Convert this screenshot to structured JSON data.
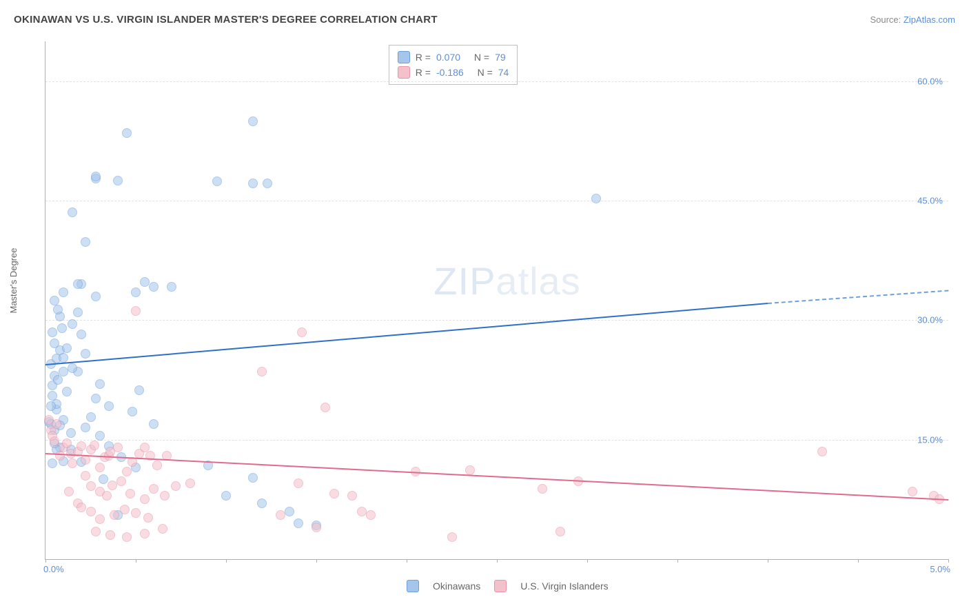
{
  "title": "OKINAWAN VS U.S. VIRGIN ISLANDER MASTER'S DEGREE CORRELATION CHART",
  "source_label": "Source: ",
  "source_name": "ZipAtlas.com",
  "ylabel": "Master's Degree",
  "watermark_a": "ZIP",
  "watermark_b": "atlas",
  "chart": {
    "type": "scatter",
    "xlim": [
      0,
      5
    ],
    "ylim": [
      0,
      65
    ],
    "xticks": [
      0,
      0.5,
      1,
      1.5,
      2,
      2.5,
      3,
      3.5,
      4,
      4.5,
      5
    ],
    "xtick_labels": {
      "0": "0.0%",
      "5": "5.0%"
    },
    "yticks": [
      15,
      30,
      45,
      60
    ],
    "ytick_labels": [
      "15.0%",
      "30.0%",
      "45.0%",
      "60.0%"
    ],
    "grid_color": "#e2e2e2",
    "background": "#ffffff",
    "series": {
      "blue": {
        "name": "Okinawans",
        "color_fill": "#a6c5ea",
        "color_stroke": "#6b9fdd",
        "r_label": "R =",
        "r": "0.070",
        "n_label": "N =",
        "n": "79",
        "trend": {
          "x1": 0,
          "y1": 24.5,
          "x2": 4.0,
          "y2": 32.2,
          "dashed_to": 5,
          "y3": 33.8,
          "color": "#2e6fc9"
        },
        "points": [
          [
            0.03,
            24.5
          ],
          [
            0.05,
            23
          ],
          [
            0.04,
            21.8
          ],
          [
            0.07,
            22.5
          ],
          [
            0.1,
            23.5
          ],
          [
            0.06,
            25.2
          ],
          [
            0.08,
            26.2
          ],
          [
            0.05,
            27.1
          ],
          [
            0.12,
            26.5
          ],
          [
            0.15,
            29.5
          ],
          [
            0.2,
            34.5
          ],
          [
            0.18,
            31.0
          ],
          [
            0.1,
            33.5
          ],
          [
            0.05,
            32.5
          ],
          [
            0.28,
            47.8
          ],
          [
            0.22,
            39.8
          ],
          [
            0.45,
            53.5
          ],
          [
            0.55,
            34.8
          ],
          [
            0.7,
            34.2
          ],
          [
            0.52,
            21.2
          ],
          [
            0.3,
            22.0
          ],
          [
            0.28,
            20.2
          ],
          [
            0.25,
            17.8
          ],
          [
            0.35,
            19.2
          ],
          [
            0.48,
            18.5
          ],
          [
            0.4,
            47.5
          ],
          [
            0.6,
            17.0
          ],
          [
            0.95,
            47.4
          ],
          [
            1.15,
            47.2
          ],
          [
            1.23,
            47.2
          ],
          [
            0.15,
            43.5
          ],
          [
            3.05,
            45.3
          ],
          [
            1.15,
            55.0
          ],
          [
            0.28,
            48.0
          ],
          [
            0.09,
            29.0
          ],
          [
            0.04,
            20.5
          ],
          [
            0.06,
            18.8
          ],
          [
            0.1,
            17.5
          ],
          [
            0.14,
            15.8
          ],
          [
            0.22,
            16.5
          ],
          [
            0.3,
            15.5
          ],
          [
            0.35,
            14.2
          ],
          [
            0.42,
            12.8
          ],
          [
            0.32,
            10.0
          ],
          [
            0.5,
            11.5
          ],
          [
            0.08,
            14.0
          ],
          [
            0.06,
            13.8
          ],
          [
            0.04,
            12.0
          ],
          [
            0.02,
            17.2
          ],
          [
            0.06,
            19.5
          ],
          [
            0.12,
            21.0
          ],
          [
            0.18,
            23.5
          ],
          [
            0.22,
            25.8
          ],
          [
            0.08,
            30.5
          ],
          [
            0.03,
            19.2
          ],
          [
            0.05,
            16.2
          ],
          [
            0.14,
            13.8
          ],
          [
            0.2,
            12.2
          ],
          [
            0.9,
            11.8
          ],
          [
            1.0,
            8.0
          ],
          [
            1.15,
            10.2
          ],
          [
            1.2,
            7.0
          ],
          [
            1.35,
            6.0
          ],
          [
            1.4,
            4.5
          ],
          [
            1.5,
            4.2
          ],
          [
            0.4,
            5.5
          ],
          [
            0.6,
            34.2
          ],
          [
            0.5,
            33.5
          ],
          [
            0.28,
            33.0
          ],
          [
            0.18,
            34.5
          ],
          [
            0.1,
            25.3
          ],
          [
            0.15,
            24.0
          ],
          [
            0.2,
            28.2
          ],
          [
            0.07,
            31.3
          ],
          [
            0.04,
            28.5
          ],
          [
            0.05,
            14.5
          ],
          [
            0.1,
            12.3
          ],
          [
            0.08,
            16.8
          ],
          [
            0.03,
            17.0
          ]
        ]
      },
      "pink": {
        "name": "U.S. Virgin Islanders",
        "color_fill": "#f4c0cb",
        "color_stroke": "#e993a8",
        "r_label": "R =",
        "r": "-0.186",
        "n_label": "N =",
        "n": "74",
        "trend": {
          "x1": 0,
          "y1": 13.3,
          "x2": 5.0,
          "y2": 7.5,
          "color": "#e16a8d"
        },
        "points": [
          [
            0.02,
            17.5
          ],
          [
            0.03,
            16.2
          ],
          [
            0.04,
            15.5
          ],
          [
            0.06,
            17.0
          ],
          [
            0.05,
            14.8
          ],
          [
            0.1,
            14.0
          ],
          [
            0.08,
            13.0
          ],
          [
            0.12,
            14.5
          ],
          [
            0.14,
            13.2
          ],
          [
            0.15,
            12.0
          ],
          [
            0.18,
            13.5
          ],
          [
            0.2,
            14.2
          ],
          [
            0.22,
            12.5
          ],
          [
            0.25,
            13.8
          ],
          [
            0.27,
            14.3
          ],
          [
            0.3,
            11.5
          ],
          [
            0.33,
            12.8
          ],
          [
            0.35,
            13.0
          ],
          [
            0.36,
            13.5
          ],
          [
            0.4,
            14.0
          ],
          [
            0.45,
            11.0
          ],
          [
            0.48,
            12.2
          ],
          [
            0.52,
            13.2
          ],
          [
            0.55,
            14.0
          ],
          [
            0.58,
            13.0
          ],
          [
            0.62,
            11.8
          ],
          [
            0.67,
            13.0
          ],
          [
            0.22,
            10.5
          ],
          [
            0.25,
            9.2
          ],
          [
            0.3,
            8.5
          ],
          [
            0.34,
            8.0
          ],
          [
            0.37,
            9.3
          ],
          [
            0.42,
            9.8
          ],
          [
            0.47,
            8.2
          ],
          [
            0.55,
            7.5
          ],
          [
            0.6,
            8.8
          ],
          [
            0.66,
            8.0
          ],
          [
            0.72,
            9.2
          ],
          [
            0.18,
            7.0
          ],
          [
            0.13,
            8.5
          ],
          [
            0.2,
            6.5
          ],
          [
            0.25,
            6.0
          ],
          [
            0.3,
            5.0
          ],
          [
            0.38,
            5.5
          ],
          [
            0.44,
            6.2
          ],
          [
            0.5,
            5.8
          ],
          [
            0.57,
            5.2
          ],
          [
            0.28,
            3.5
          ],
          [
            0.36,
            3.0
          ],
          [
            0.45,
            2.8
          ],
          [
            0.55,
            3.2
          ],
          [
            0.65,
            3.8
          ],
          [
            0.8,
            9.5
          ],
          [
            0.5,
            31.2
          ],
          [
            1.42,
            28.5
          ],
          [
            1.2,
            23.5
          ],
          [
            1.55,
            19.0
          ],
          [
            1.4,
            9.5
          ],
          [
            1.6,
            8.2
          ],
          [
            1.75,
            6.0
          ],
          [
            1.8,
            5.5
          ],
          [
            1.7,
            8.0
          ],
          [
            2.05,
            11.0
          ],
          [
            2.25,
            2.8
          ],
          [
            2.35,
            11.2
          ],
          [
            2.85,
            3.5
          ],
          [
            2.95,
            9.8
          ],
          [
            2.75,
            8.8
          ],
          [
            4.3,
            13.5
          ],
          [
            4.8,
            8.5
          ],
          [
            4.92,
            8.0
          ],
          [
            4.95,
            7.5
          ],
          [
            1.5,
            4.0
          ],
          [
            1.3,
            5.5
          ]
        ]
      }
    }
  }
}
